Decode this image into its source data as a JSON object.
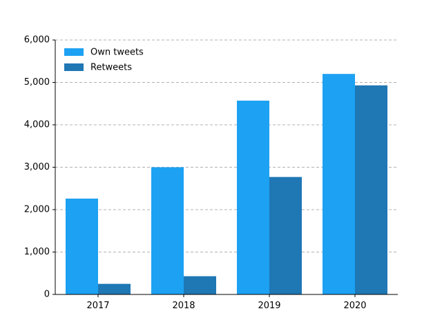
{
  "chart_data": {
    "type": "bar",
    "categories": [
      "2017",
      "2018",
      "2019",
      "2020"
    ],
    "series": [
      {
        "name": "Own tweets",
        "values": [
          2260,
          3000,
          4570,
          5200
        ],
        "color": "#1da1f2"
      },
      {
        "name": "Retweets",
        "values": [
          250,
          430,
          2770,
          4930
        ],
        "color": "#1f77b4"
      }
    ],
    "yticks": [
      0,
      1000,
      2000,
      3000,
      4000,
      5000,
      6000
    ],
    "ytick_labels": [
      "0",
      "1,000",
      "2,000",
      "3,000",
      "4,000",
      "5,000",
      "6,000"
    ],
    "ylim": [
      0,
      6000
    ],
    "grid": "y-dashed",
    "legend_position": "top-left",
    "title": "",
    "xlabel": "",
    "ylabel": ""
  }
}
